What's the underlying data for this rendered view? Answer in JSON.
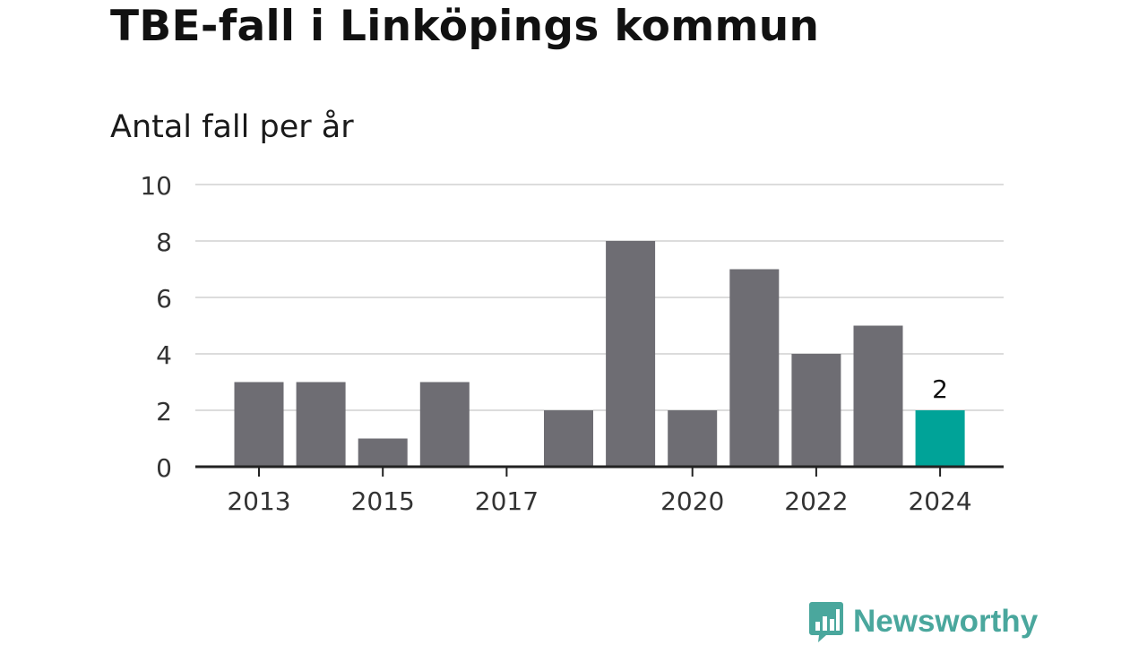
{
  "title": "TBE-fall i Linköpings kommun",
  "subtitle": "Antal fall per år",
  "brand": {
    "name": "Newsworthy",
    "icon": "chart-speech-bubble-icon"
  },
  "colors": {
    "bar": "#6e6d73",
    "highlight": "#00a398",
    "grid": "#dcdcdc",
    "axis": "#222222",
    "brand": "#4aa79d"
  },
  "chart_data": {
    "type": "bar",
    "title": "TBE-fall i Linköpings kommun",
    "subtitle": "Antal fall per år",
    "xlabel": "",
    "ylabel": "",
    "categories": [
      "2013",
      "2014",
      "2015",
      "2016",
      "2017",
      "2018",
      "2019",
      "2020",
      "2021",
      "2022",
      "2023",
      "2024"
    ],
    "values": [
      3,
      3,
      1,
      3,
      0,
      2,
      8,
      2,
      7,
      4,
      5,
      2
    ],
    "x_tick_labels": [
      "2013",
      "2015",
      "2017",
      "2020",
      "2022",
      "2024"
    ],
    "y_ticks": [
      0,
      2,
      4,
      6,
      8,
      10
    ],
    "ylim": [
      0,
      10
    ],
    "grid": true,
    "highlight": {
      "category": "2024",
      "label": "2"
    }
  }
}
